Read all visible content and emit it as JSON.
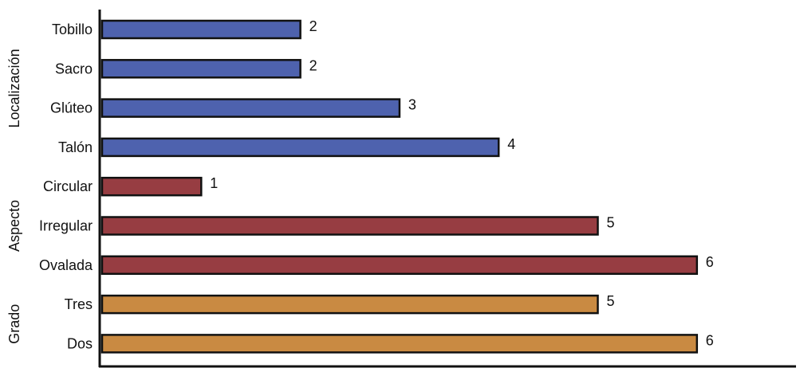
{
  "chart_data": {
    "type": "bar",
    "orientation": "horizontal",
    "title": "",
    "xlabel": "",
    "ylabel": "",
    "xlim": [
      0,
      7
    ],
    "grid": false,
    "legend": "none",
    "groups": [
      {
        "name": "Localización",
        "color": "#4E62AE",
        "categories": [
          "Tobillo",
          "Sacro",
          "Glúteo",
          "Talón"
        ],
        "values": [
          2,
          2,
          3,
          4
        ]
      },
      {
        "name": "Aspecto",
        "color": "#973D42",
        "categories": [
          "Circular",
          "Irregular",
          "Ovalada"
        ],
        "values": [
          1,
          5,
          6
        ]
      },
      {
        "name": "Grado",
        "color": "#C98A42",
        "categories": [
          "Tres",
          "Dos"
        ],
        "values": [
          5,
          6
        ]
      }
    ]
  }
}
